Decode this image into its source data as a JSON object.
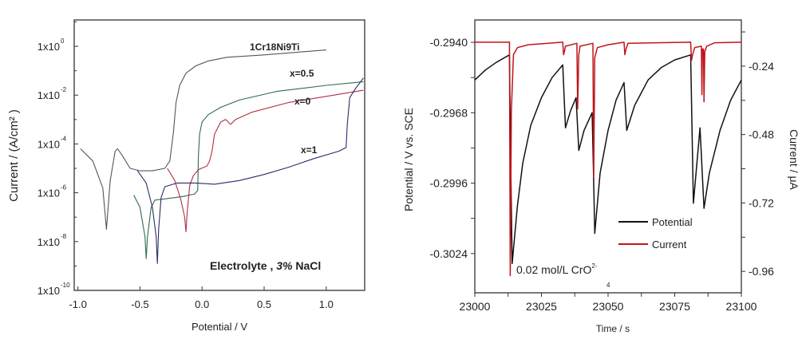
{
  "chart_data": [
    {
      "type": "line",
      "xlabel": "Potential / V",
      "ylabel": "Current / (A/cm² )",
      "yscale": "log",
      "xlim": [
        -1.03,
        1.31
      ],
      "ylim_log10": [
        -10,
        1.08
      ],
      "xticks": [
        -1.0,
        -0.5,
        0.0,
        0.5,
        1.0
      ],
      "xtick_labels": [
        "-1.0",
        "-0.5",
        "0.0",
        "0.5",
        "1.0"
      ],
      "yticks_log10": [
        0,
        -2,
        -4,
        -6,
        -8,
        -10
      ],
      "ytick_labels": [
        "1x10",
        "1x10",
        "1x10",
        "1x10",
        "1x10",
        "1x10"
      ],
      "ytick_exponents": [
        "0",
        "-2",
        "-4",
        "-6",
        "-8",
        "-10"
      ],
      "annotation": {
        "prefix": "Electrolyte ,  ",
        "italic": "3%",
        "suffix": " NaCl"
      },
      "grid": false,
      "series": [
        {
          "name": "1Cr18Ni9Ti",
          "color": "#555555",
          "x": [
            -0.98,
            -0.88,
            -0.8,
            -0.77,
            -0.74,
            -0.7,
            -0.68,
            -0.64,
            -0.58,
            -0.5,
            -0.4,
            -0.3,
            -0.26,
            -0.23,
            -0.21,
            -0.18,
            -0.13,
            -0.05,
            0.05,
            0.2,
            0.5,
            1.0
          ],
          "log10_y": [
            -4.2,
            -4.7,
            -5.8,
            -7.5,
            -5.5,
            -4.3,
            -4.2,
            -4.5,
            -5.0,
            -5.1,
            -5.1,
            -5.0,
            -4.7,
            -3.5,
            -2.3,
            -1.6,
            -1.1,
            -0.8,
            -0.6,
            -0.45,
            -0.35,
            -0.15
          ]
        },
        {
          "name": "x=0.5",
          "color": "#2e6b4f",
          "x": [
            -0.55,
            -0.5,
            -0.46,
            -0.45,
            -0.44,
            -0.41,
            -0.38,
            -0.3,
            -0.15,
            -0.06,
            -0.035,
            -0.03,
            -0.02,
            0.0,
            0.05,
            0.15,
            0.3,
            0.6,
            1.0,
            1.3
          ],
          "log10_y": [
            -6.1,
            -6.6,
            -7.8,
            -8.7,
            -7.8,
            -6.6,
            -6.3,
            -6.25,
            -6.15,
            -6.05,
            -5.9,
            -4.5,
            -3.6,
            -3.1,
            -2.8,
            -2.5,
            -2.2,
            -1.85,
            -1.6,
            -1.45
          ]
        },
        {
          "name": "x=0",
          "color": "#b03040",
          "x": [
            -0.28,
            -0.22,
            -0.17,
            -0.14,
            -0.13,
            -0.12,
            -0.1,
            -0.07,
            -0.03,
            0.04,
            0.06,
            0.08,
            0.1,
            0.15,
            0.19,
            0.21,
            0.23,
            0.27,
            0.4,
            0.7,
            1.0,
            1.3
          ],
          "log10_y": [
            -5.0,
            -5.5,
            -6.3,
            -7.0,
            -7.6,
            -6.8,
            -5.7,
            -5.3,
            -5.05,
            -4.9,
            -4.7,
            -4.3,
            -3.6,
            -3.1,
            -3.0,
            -3.1,
            -3.2,
            -3.0,
            -2.7,
            -2.3,
            -2.05,
            -1.8
          ]
        },
        {
          "name": "x=1",
          "color": "#2b2b6b",
          "x": [
            -0.52,
            -0.45,
            -0.4,
            -0.37,
            -0.36,
            -0.35,
            -0.33,
            -0.3,
            -0.2,
            -0.05,
            0.1,
            0.3,
            0.5,
            0.7,
            0.9,
            1.1,
            1.16,
            1.17,
            1.19,
            1.24,
            1.3
          ],
          "log10_y": [
            -5.1,
            -5.6,
            -6.6,
            -7.8,
            -8.9,
            -7.5,
            -6.2,
            -5.75,
            -5.6,
            -5.6,
            -5.65,
            -5.5,
            -5.25,
            -4.95,
            -4.6,
            -4.3,
            -4.15,
            -3.2,
            -2.1,
            -1.7,
            -1.3
          ]
        }
      ]
    },
    {
      "type": "line",
      "xlabel": "Time / s",
      "ylabel": "Potential / V vs. SCE",
      "y2label": "Current / μA",
      "xlim": [
        23000,
        23100
      ],
      "ylim": [
        -0.30396,
        -0.29311
      ],
      "y2lim": [
        -1.035,
        -0.078
      ],
      "xticks": [
        23000,
        23025,
        23050,
        23075,
        23100
      ],
      "xtick_labels": [
        "23000",
        "23025",
        "23050",
        "23075",
        "23100"
      ],
      "yticks": [
        -0.294,
        -0.2968,
        -0.2996,
        -0.3024
      ],
      "ytick_labels": [
        "-0.2940",
        "-0.2968",
        "-0.2996",
        "-0.3024"
      ],
      "y2ticks": [
        -0.24,
        -0.48,
        -0.72,
        -0.96
      ],
      "y2tick_labels": [
        "-0.24",
        "-0.48",
        "-0.72",
        "-0.96"
      ],
      "annotation": {
        "text": "0.02 mol/L CrO",
        "sup": "2-",
        "sub": "4"
      },
      "legend": "bottom-right",
      "grid": false,
      "series": [
        {
          "name": "Potential",
          "color": "#111111",
          "axis": "left",
          "x": [
            23000,
            23004,
            23008,
            23013,
            23013.5,
            23014,
            23016,
            23018,
            23021,
            23025,
            23029,
            23033,
            23034,
            23036,
            23038,
            23039,
            23041,
            23044,
            23044.5,
            23045,
            23047,
            23050,
            23053,
            23056,
            23057,
            23060,
            23065,
            23070,
            23075,
            23081,
            23082,
            23084.5,
            23086,
            23088,
            23092,
            23096,
            23100
          ],
          "y": [
            -0.2955,
            -0.2951,
            -0.2948,
            -0.2945,
            -0.299,
            -0.3028,
            -0.3005,
            -0.2988,
            -0.2973,
            -0.2962,
            -0.2954,
            -0.2949,
            -0.2974,
            -0.2967,
            -0.2962,
            -0.2983,
            -0.2975,
            -0.2968,
            -0.299,
            -0.3016,
            -0.2992,
            -0.2975,
            -0.2963,
            -0.2956,
            -0.2975,
            -0.2965,
            -0.2955,
            -0.295,
            -0.2947,
            -0.2945,
            -0.3004,
            -0.2974,
            -0.3006,
            -0.2992,
            -0.2975,
            -0.2963,
            -0.2955
          ]
        },
        {
          "name": "Current",
          "color": "#c0141c",
          "axis": "right",
          "x": [
            23000,
            23013,
            23013.3,
            23013.7,
            23014.5,
            23016,
            23020,
            23033,
            23033.3,
            23033.6,
            23034,
            23038.3,
            23038.6,
            23039,
            23039.5,
            23044.3,
            23044.6,
            23045,
            23046,
            23050,
            23056,
            23056.3,
            23056.7,
            23057.5,
            23081,
            23081.3,
            23081.7,
            23082.5,
            23085,
            23085.2,
            23085.4,
            23085.8,
            23086,
            23086.3,
            23087,
            23090,
            23100
          ],
          "y": [
            -0.156,
            -0.156,
            -0.975,
            -0.4,
            -0.2,
            -0.175,
            -0.165,
            -0.156,
            -0.2,
            -0.19,
            -0.17,
            -0.16,
            -0.39,
            -0.2,
            -0.17,
            -0.16,
            -0.63,
            -0.21,
            -0.175,
            -0.165,
            -0.156,
            -0.2,
            -0.18,
            -0.16,
            -0.156,
            -0.22,
            -0.2,
            -0.175,
            -0.17,
            -0.34,
            -0.18,
            -0.18,
            -0.365,
            -0.19,
            -0.17,
            -0.158,
            -0.156
          ]
        }
      ]
    }
  ]
}
